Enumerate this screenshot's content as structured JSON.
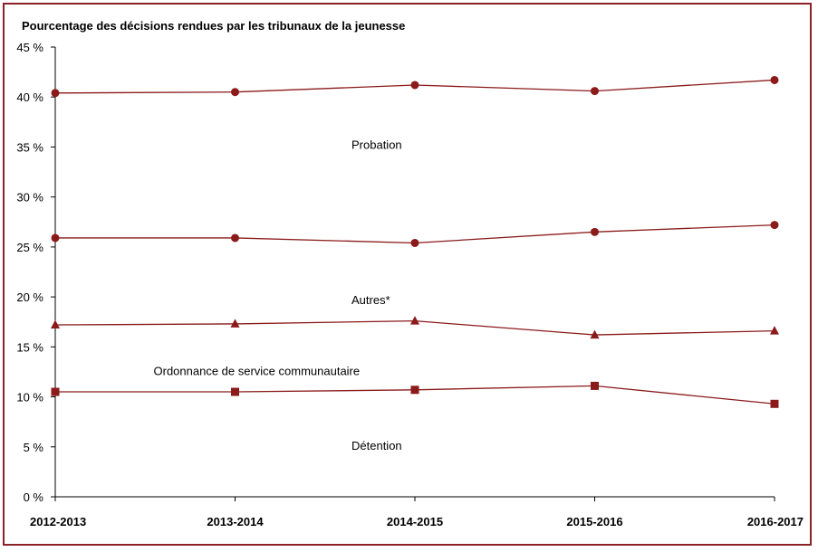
{
  "chart_data": {
    "type": "line",
    "title": "Pourcentage des décisions rendues par les tribunaux de la jeunesse",
    "xlabel": "",
    "ylabel": "",
    "categories": [
      "2012-2013",
      "2013-2014",
      "2014-2015",
      "2015-2016",
      "2016-2017"
    ],
    "y_ticks": [
      "0 %",
      "5 %",
      "10 %",
      "15 %",
      "20 %",
      "25 %",
      "30 %",
      "35 %",
      "40 %",
      "45 %"
    ],
    "ylim": [
      0,
      45
    ],
    "grid": false,
    "line_color": "#8b1a1a",
    "series": [
      {
        "marker": "circle",
        "values": [
          40.4,
          40.5,
          41.2,
          40.6,
          41.7
        ]
      },
      {
        "marker": "circle",
        "values": [
          25.9,
          25.9,
          25.4,
          26.5,
          27.2
        ]
      },
      {
        "marker": "triangle",
        "values": [
          17.2,
          17.3,
          17.6,
          16.2,
          16.6
        ]
      },
      {
        "marker": "square",
        "values": [
          10.5,
          10.5,
          10.7,
          11.1,
          9.3
        ]
      }
    ],
    "annotations": [
      {
        "text": "Probation",
        "x": 2.0,
        "y": 34.8
      },
      {
        "text": "Autres*",
        "x": 2.0,
        "y": 19.3
      },
      {
        "text": "Ordonnance de service communautaire",
        "x": 1.0,
        "y": 12.2
      },
      {
        "text": "Détention",
        "x": 2.0,
        "y": 4.7
      }
    ]
  }
}
